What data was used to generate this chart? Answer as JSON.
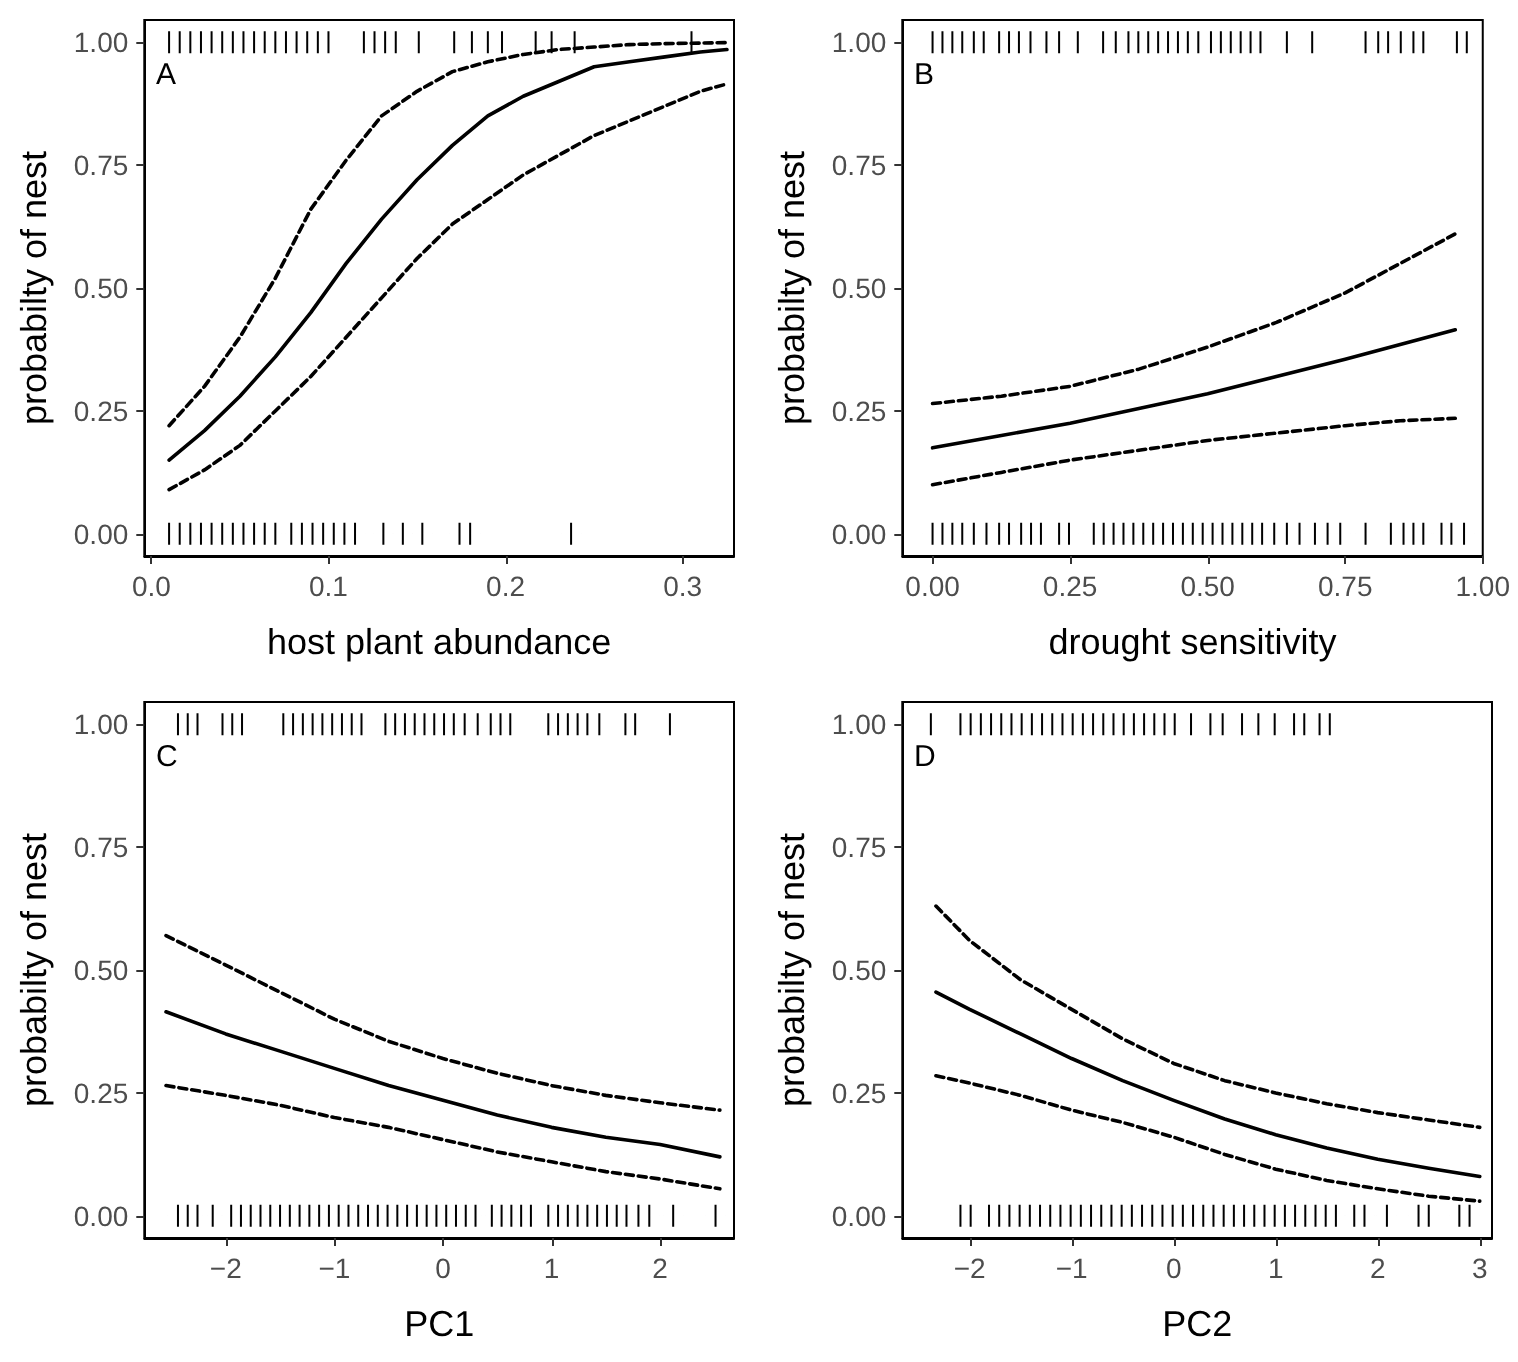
{
  "chart_data": [
    {
      "type": "line",
      "xlabel": "host plant abundance",
      "ylabel": "probabilty of nest",
      "annotations": [
        "A"
      ],
      "xlim": [
        -0.004,
        0.329
      ],
      "xticks": [
        {
          "value": 0,
          "label": "0.0"
        },
        0.1,
        0.2,
        0.3
      ],
      "ylim": [
        -0.045,
        1.045
      ],
      "yticks": [
        {
          "value": 0,
          "label": "0.00"
        },
        {
          "value": 0.25,
          "label": "0.25"
        },
        {
          "value": 0.5,
          "label": "0.50"
        },
        {
          "value": 0.75,
          "label": "0.75"
        },
        {
          "value": 1,
          "label": "1.00"
        }
      ],
      "grid": false,
      "series": [
        {
          "type": "line",
          "color": "#000000",
          "line_style": "solid",
          "x": [
            0.01,
            0.03,
            0.05,
            0.07,
            0.09,
            0.11,
            0.13,
            0.15,
            0.17,
            0.19,
            0.21,
            0.23,
            0.25,
            0.27,
            0.29,
            0.31,
            0.325
          ],
          "values": [
            0.15,
            0.21,
            0.28,
            0.36,
            0.45,
            0.55,
            0.64,
            0.72,
            0.79,
            0.85,
            0.89,
            0.92,
            0.95,
            0.96,
            0.97,
            0.98,
            0.985
          ]
        },
        {
          "type": "line",
          "color": "#000000",
          "line_style": "dashed",
          "x": [
            0.01,
            0.03,
            0.05,
            0.07,
            0.09,
            0.11,
            0.13,
            0.15,
            0.17,
            0.19,
            0.21,
            0.23,
            0.25,
            0.27,
            0.29,
            0.31,
            0.325
          ],
          "values": [
            0.22,
            0.3,
            0.4,
            0.52,
            0.66,
            0.76,
            0.85,
            0.9,
            0.94,
            0.96,
            0.975,
            0.985,
            0.99,
            0.995,
            0.997,
            0.998,
            0.999
          ]
        },
        {
          "type": "line",
          "color": "#000000",
          "line_style": "dashed",
          "x": [
            0.01,
            0.03,
            0.05,
            0.07,
            0.09,
            0.11,
            0.13,
            0.15,
            0.17,
            0.19,
            0.21,
            0.23,
            0.25,
            0.27,
            0.29,
            0.31,
            0.325
          ],
          "values": [
            0.09,
            0.13,
            0.18,
            0.25,
            0.32,
            0.4,
            0.48,
            0.56,
            0.63,
            0.68,
            0.73,
            0.77,
            0.81,
            0.84,
            0.87,
            0.9,
            0.915
          ]
        },
        {
          "type": "scatter",
          "color": "#000000",
          "x": [
            0.01,
            0.016,
            0.022,
            0.028,
            0.034,
            0.04,
            0.046,
            0.052,
            0.058,
            0.064,
            0.07,
            0.076,
            0.082,
            0.088,
            0.094,
            0.1,
            0.12,
            0.126,
            0.132,
            0.138,
            0.151,
            0.171,
            0.181,
            0.19,
            0.198,
            0.217,
            0.226,
            0.239,
            0.305
          ],
          "values": [
            1,
            1,
            1,
            1,
            1,
            1,
            1,
            1,
            1,
            1,
            1,
            1,
            1,
            1,
            1,
            1,
            1,
            1,
            1,
            1,
            1,
            1,
            1,
            1,
            1,
            1,
            1,
            1,
            1
          ]
        },
        {
          "type": "scatter",
          "color": "#000000",
          "x": [
            0.01,
            0.016,
            0.022,
            0.028,
            0.034,
            0.04,
            0.046,
            0.052,
            0.058,
            0.064,
            0.07,
            0.079,
            0.085,
            0.091,
            0.097,
            0.103,
            0.109,
            0.115,
            0.131,
            0.142,
            0.153,
            0.174,
            0.18,
            0.237
          ],
          "values": [
            0,
            0,
            0,
            0,
            0,
            0,
            0,
            0,
            0,
            0,
            0,
            0,
            0,
            0,
            0,
            0,
            0,
            0,
            0,
            0,
            0,
            0,
            0,
            0
          ]
        }
      ]
    },
    {
      "type": "line",
      "xlabel": "drought sensitivity",
      "ylabel": "probabilty of nest",
      "annotations": [
        "B"
      ],
      "xlim": [
        -0.055,
        1.0
      ],
      "xticks": [
        {
          "value": 0,
          "label": "0.00"
        },
        {
          "value": 0.25,
          "label": "0.25"
        },
        {
          "value": 0.5,
          "label": "0.50"
        },
        {
          "value": 0.75,
          "label": "0.75"
        },
        {
          "value": 1,
          "label": "1.00"
        }
      ],
      "ylim": [
        -0.045,
        1.045
      ],
      "yticks": [
        {
          "value": 0,
          "label": "0.00"
        },
        {
          "value": 0.25,
          "label": "0.25"
        },
        {
          "value": 0.5,
          "label": "0.50"
        },
        {
          "value": 0.75,
          "label": "0.75"
        },
        {
          "value": 1,
          "label": "1.00"
        }
      ],
      "grid": false,
      "series": [
        {
          "type": "line",
          "color": "#000000",
          "line_style": "solid",
          "x": [
            0,
            0.125,
            0.25,
            0.375,
            0.5,
            0.625,
            0.75,
            0.85,
            0.95
          ],
          "values": [
            0.175,
            0.2,
            0.225,
            0.255,
            0.285,
            0.32,
            0.355,
            0.385,
            0.415
          ]
        },
        {
          "type": "line",
          "color": "#000000",
          "line_style": "dashed",
          "x": [
            0,
            0.125,
            0.25,
            0.375,
            0.5,
            0.625,
            0.75,
            0.85,
            0.95
          ],
          "values": [
            0.265,
            0.28,
            0.3,
            0.335,
            0.38,
            0.43,
            0.49,
            0.55,
            0.61
          ]
        },
        {
          "type": "line",
          "color": "#000000",
          "line_style": "dashed",
          "x": [
            0,
            0.125,
            0.25,
            0.375,
            0.5,
            0.625,
            0.75,
            0.85,
            0.95
          ],
          "values": [
            0.1,
            0.125,
            0.15,
            0.17,
            0.19,
            0.205,
            0.22,
            0.23,
            0.235
          ]
        },
        {
          "type": "scatter",
          "color": "#000000",
          "x": [
            0,
            0.018,
            0.036,
            0.054,
            0.075,
            0.093,
            0.121,
            0.139,
            0.157,
            0.178,
            0.207,
            0.23,
            0.264,
            0.31,
            0.333,
            0.356,
            0.374,
            0.392,
            0.41,
            0.428,
            0.446,
            0.464,
            0.483,
            0.506,
            0.524,
            0.542,
            0.56,
            0.578,
            0.596,
            0.644,
            0.69,
            0.787,
            0.81,
            0.828,
            0.851,
            0.874,
            0.892,
            0.953,
            0.971
          ],
          "values": [
            1,
            1,
            1,
            1,
            1,
            1,
            1,
            1,
            1,
            1,
            1,
            1,
            1,
            1,
            1,
            1,
            1,
            1,
            1,
            1,
            1,
            1,
            1,
            1,
            1,
            1,
            1,
            1,
            1,
            1,
            1,
            1,
            1,
            1,
            1,
            1,
            1,
            1,
            1
          ]
        },
        {
          "type": "scatter",
          "color": "#000000",
          "x": [
            0,
            0.018,
            0.036,
            0.054,
            0.075,
            0.098,
            0.121,
            0.139,
            0.161,
            0.179,
            0.197,
            0.23,
            0.248,
            0.293,
            0.311,
            0.329,
            0.347,
            0.365,
            0.383,
            0.401,
            0.419,
            0.437,
            0.455,
            0.473,
            0.491,
            0.509,
            0.527,
            0.545,
            0.563,
            0.581,
            0.599,
            0.621,
            0.644,
            0.667,
            0.695,
            0.718,
            0.741,
            0.787,
            0.833,
            0.856,
            0.874,
            0.892,
            0.925,
            0.943,
            0.966
          ],
          "values": [
            0,
            0,
            0,
            0,
            0,
            0,
            0,
            0,
            0,
            0,
            0,
            0,
            0,
            0,
            0,
            0,
            0,
            0,
            0,
            0,
            0,
            0,
            0,
            0,
            0,
            0,
            0,
            0,
            0,
            0,
            0,
            0,
            0,
            0,
            0,
            0,
            0,
            0,
            0,
            0,
            0,
            0,
            0,
            0,
            0
          ]
        }
      ]
    },
    {
      "type": "line",
      "xlabel": "PC1",
      "ylabel": "probabilty of nest",
      "annotations": [
        "C"
      ],
      "xlim": [
        -2.75,
        2.68
      ],
      "xticks": [
        {
          "value": -2,
          "label": "−2"
        },
        {
          "value": -1,
          "label": "−1"
        },
        0,
        1,
        2
      ],
      "ylim": [
        -0.045,
        1.045
      ],
      "yticks": [
        {
          "value": 0,
          "label": "0.00"
        },
        {
          "value": 0.25,
          "label": "0.25"
        },
        {
          "value": 0.5,
          "label": "0.50"
        },
        {
          "value": 0.75,
          "label": "0.75"
        },
        {
          "value": 1,
          "label": "1.00"
        }
      ],
      "grid": false,
      "series": [
        {
          "type": "line",
          "color": "#000000",
          "line_style": "solid",
          "x": [
            -2.55,
            -2,
            -1.5,
            -1,
            -0.5,
            0,
            0.5,
            1,
            1.5,
            2,
            2.55
          ],
          "values": [
            0.415,
            0.37,
            0.335,
            0.3,
            0.265,
            0.235,
            0.205,
            0.18,
            0.16,
            0.145,
            0.12
          ]
        },
        {
          "type": "line",
          "color": "#000000",
          "line_style": "dashed",
          "x": [
            -2.55,
            -2,
            -1.5,
            -1,
            -0.5,
            0,
            0.5,
            1,
            1.5,
            2,
            2.55
          ],
          "values": [
            0.57,
            0.51,
            0.455,
            0.4,
            0.355,
            0.32,
            0.29,
            0.265,
            0.245,
            0.23,
            0.215
          ]
        },
        {
          "type": "line",
          "color": "#000000",
          "line_style": "dashed",
          "x": [
            -2.55,
            -2,
            -1.5,
            -1,
            -0.5,
            0,
            0.5,
            1,
            1.5,
            2,
            2.55
          ],
          "values": [
            0.265,
            0.245,
            0.225,
            0.2,
            0.18,
            0.155,
            0.13,
            0.11,
            0.09,
            0.075,
            0.055
          ]
        },
        {
          "type": "scatter",
          "color": "#000000",
          "x": [
            -2.44,
            -2.35,
            -2.26,
            -2.03,
            -1.94,
            -1.85,
            -1.47,
            -1.38,
            -1.29,
            -1.2,
            -1.11,
            -1.02,
            -0.93,
            -0.84,
            -0.75,
            -0.53,
            -0.44,
            -0.35,
            -0.26,
            -0.17,
            -0.08,
            0.01,
            0.1,
            0.2,
            0.32,
            0.44,
            0.53,
            0.62,
            0.97,
            1.06,
            1.15,
            1.24,
            1.33,
            1.44,
            1.68,
            1.77,
            2.09
          ],
          "values": [
            1,
            1,
            1,
            1,
            1,
            1,
            1,
            1,
            1,
            1,
            1,
            1,
            1,
            1,
            1,
            1,
            1,
            1,
            1,
            1,
            1,
            1,
            1,
            1,
            1,
            1,
            1,
            1,
            1,
            1,
            1,
            1,
            1,
            1,
            1,
            1,
            1
          ]
        },
        {
          "type": "scatter",
          "color": "#000000",
          "x": [
            -2.44,
            -2.35,
            -2.26,
            -2.12,
            -1.95,
            -1.86,
            -1.77,
            -1.68,
            -1.59,
            -1.5,
            -1.41,
            -1.32,
            -1.23,
            -1.14,
            -1.05,
            -0.96,
            -0.87,
            -0.78,
            -0.69,
            -0.6,
            -0.51,
            -0.42,
            -0.33,
            -0.24,
            -0.15,
            -0.06,
            0.03,
            0.12,
            0.21,
            0.3,
            0.45,
            0.54,
            0.63,
            0.72,
            0.81,
            0.97,
            1.06,
            1.15,
            1.24,
            1.33,
            1.42,
            1.51,
            1.6,
            1.69,
            1.8,
            1.9,
            2.12,
            2.51
          ],
          "values": [
            0,
            0,
            0,
            0,
            0,
            0,
            0,
            0,
            0,
            0,
            0,
            0,
            0,
            0,
            0,
            0,
            0,
            0,
            0,
            0,
            0,
            0,
            0,
            0,
            0,
            0,
            0,
            0,
            0,
            0,
            0,
            0,
            0,
            0,
            0,
            0,
            0,
            0,
            0,
            0,
            0,
            0,
            0,
            0,
            0,
            0,
            0,
            0
          ]
        }
      ]
    },
    {
      "type": "line",
      "xlabel": "PC2",
      "ylabel": "probabilty of nest",
      "annotations": [
        "D"
      ],
      "xlim": [
        -2.66,
        3.12
      ],
      "xticks": [
        {
          "value": -2,
          "label": "−2"
        },
        {
          "value": -1,
          "label": "−1"
        },
        0,
        1,
        2,
        3
      ],
      "ylim": [
        -0.045,
        1.045
      ],
      "yticks": [
        {
          "value": 0,
          "label": "0.00"
        },
        {
          "value": 0.25,
          "label": "0.25"
        },
        {
          "value": 0.5,
          "label": "0.50"
        },
        {
          "value": 0.75,
          "label": "0.75"
        },
        {
          "value": 1,
          "label": "1.00"
        }
      ],
      "grid": false,
      "series": [
        {
          "type": "line",
          "color": "#000000",
          "line_style": "solid",
          "x": [
            -2.33,
            -2,
            -1.5,
            -1,
            -0.5,
            0,
            0.5,
            1,
            1.5,
            2,
            2.5,
            3
          ],
          "values": [
            0.455,
            0.42,
            0.37,
            0.32,
            0.275,
            0.235,
            0.197,
            0.165,
            0.138,
            0.115,
            0.097,
            0.08
          ]
        },
        {
          "type": "line",
          "color": "#000000",
          "line_style": "dashed",
          "x": [
            -2.33,
            -2,
            -1.5,
            -1,
            -0.5,
            0,
            0.5,
            1,
            1.5,
            2,
            2.5,
            3
          ],
          "values": [
            0.63,
            0.56,
            0.48,
            0.42,
            0.36,
            0.31,
            0.275,
            0.25,
            0.228,
            0.21,
            0.195,
            0.18
          ]
        },
        {
          "type": "line",
          "color": "#000000",
          "line_style": "dashed",
          "x": [
            -2.33,
            -2,
            -1.5,
            -1,
            -0.5,
            0,
            0.5,
            1,
            1.5,
            2,
            2.5,
            3
          ],
          "values": [
            0.285,
            0.27,
            0.245,
            0.215,
            0.19,
            0.16,
            0.125,
            0.095,
            0.072,
            0.055,
            0.04,
            0.03
          ]
        },
        {
          "type": "scatter",
          "color": "#000000",
          "x": [
            -2.38,
            -2.09,
            -1.99,
            -1.89,
            -1.79,
            -1.69,
            -1.59,
            -1.49,
            -1.39,
            -1.29,
            -1.19,
            -1.09,
            -0.99,
            -0.89,
            -0.79,
            -0.69,
            -0.59,
            -0.49,
            -0.39,
            -0.29,
            -0.19,
            -0.09,
            0.01,
            0.17,
            0.36,
            0.48,
            0.67,
            0.83,
            0.99,
            1.18,
            1.28,
            1.43,
            1.53
          ],
          "values": [
            1,
            1,
            1,
            1,
            1,
            1,
            1,
            1,
            1,
            1,
            1,
            1,
            1,
            1,
            1,
            1,
            1,
            1,
            1,
            1,
            1,
            1,
            1,
            1,
            1,
            1,
            1,
            1,
            1,
            1,
            1,
            1,
            1
          ]
        },
        {
          "type": "scatter",
          "color": "#000000",
          "x": [
            -2.09,
            -1.99,
            -1.81,
            -1.71,
            -1.61,
            -1.51,
            -1.41,
            -1.31,
            -1.21,
            -1.11,
            -1.01,
            -0.91,
            -0.81,
            -0.71,
            -0.61,
            -0.51,
            -0.41,
            -0.31,
            -0.21,
            -0.11,
            -0.01,
            0.09,
            0.19,
            0.29,
            0.39,
            0.49,
            0.59,
            0.69,
            0.79,
            0.89,
            0.99,
            1.09,
            1.19,
            1.29,
            1.39,
            1.49,
            1.59,
            1.77,
            1.87,
            2.09,
            2.4,
            2.5,
            2.8,
            2.9
          ],
          "values": [
            0,
            0,
            0,
            0,
            0,
            0,
            0,
            0,
            0,
            0,
            0,
            0,
            0,
            0,
            0,
            0,
            0,
            0,
            0,
            0,
            0,
            0,
            0,
            0,
            0,
            0,
            0,
            0,
            0,
            0,
            0,
            0,
            0,
            0,
            0,
            0,
            0,
            0,
            0,
            0,
            0,
            0,
            0,
            0
          ]
        }
      ]
    }
  ]
}
